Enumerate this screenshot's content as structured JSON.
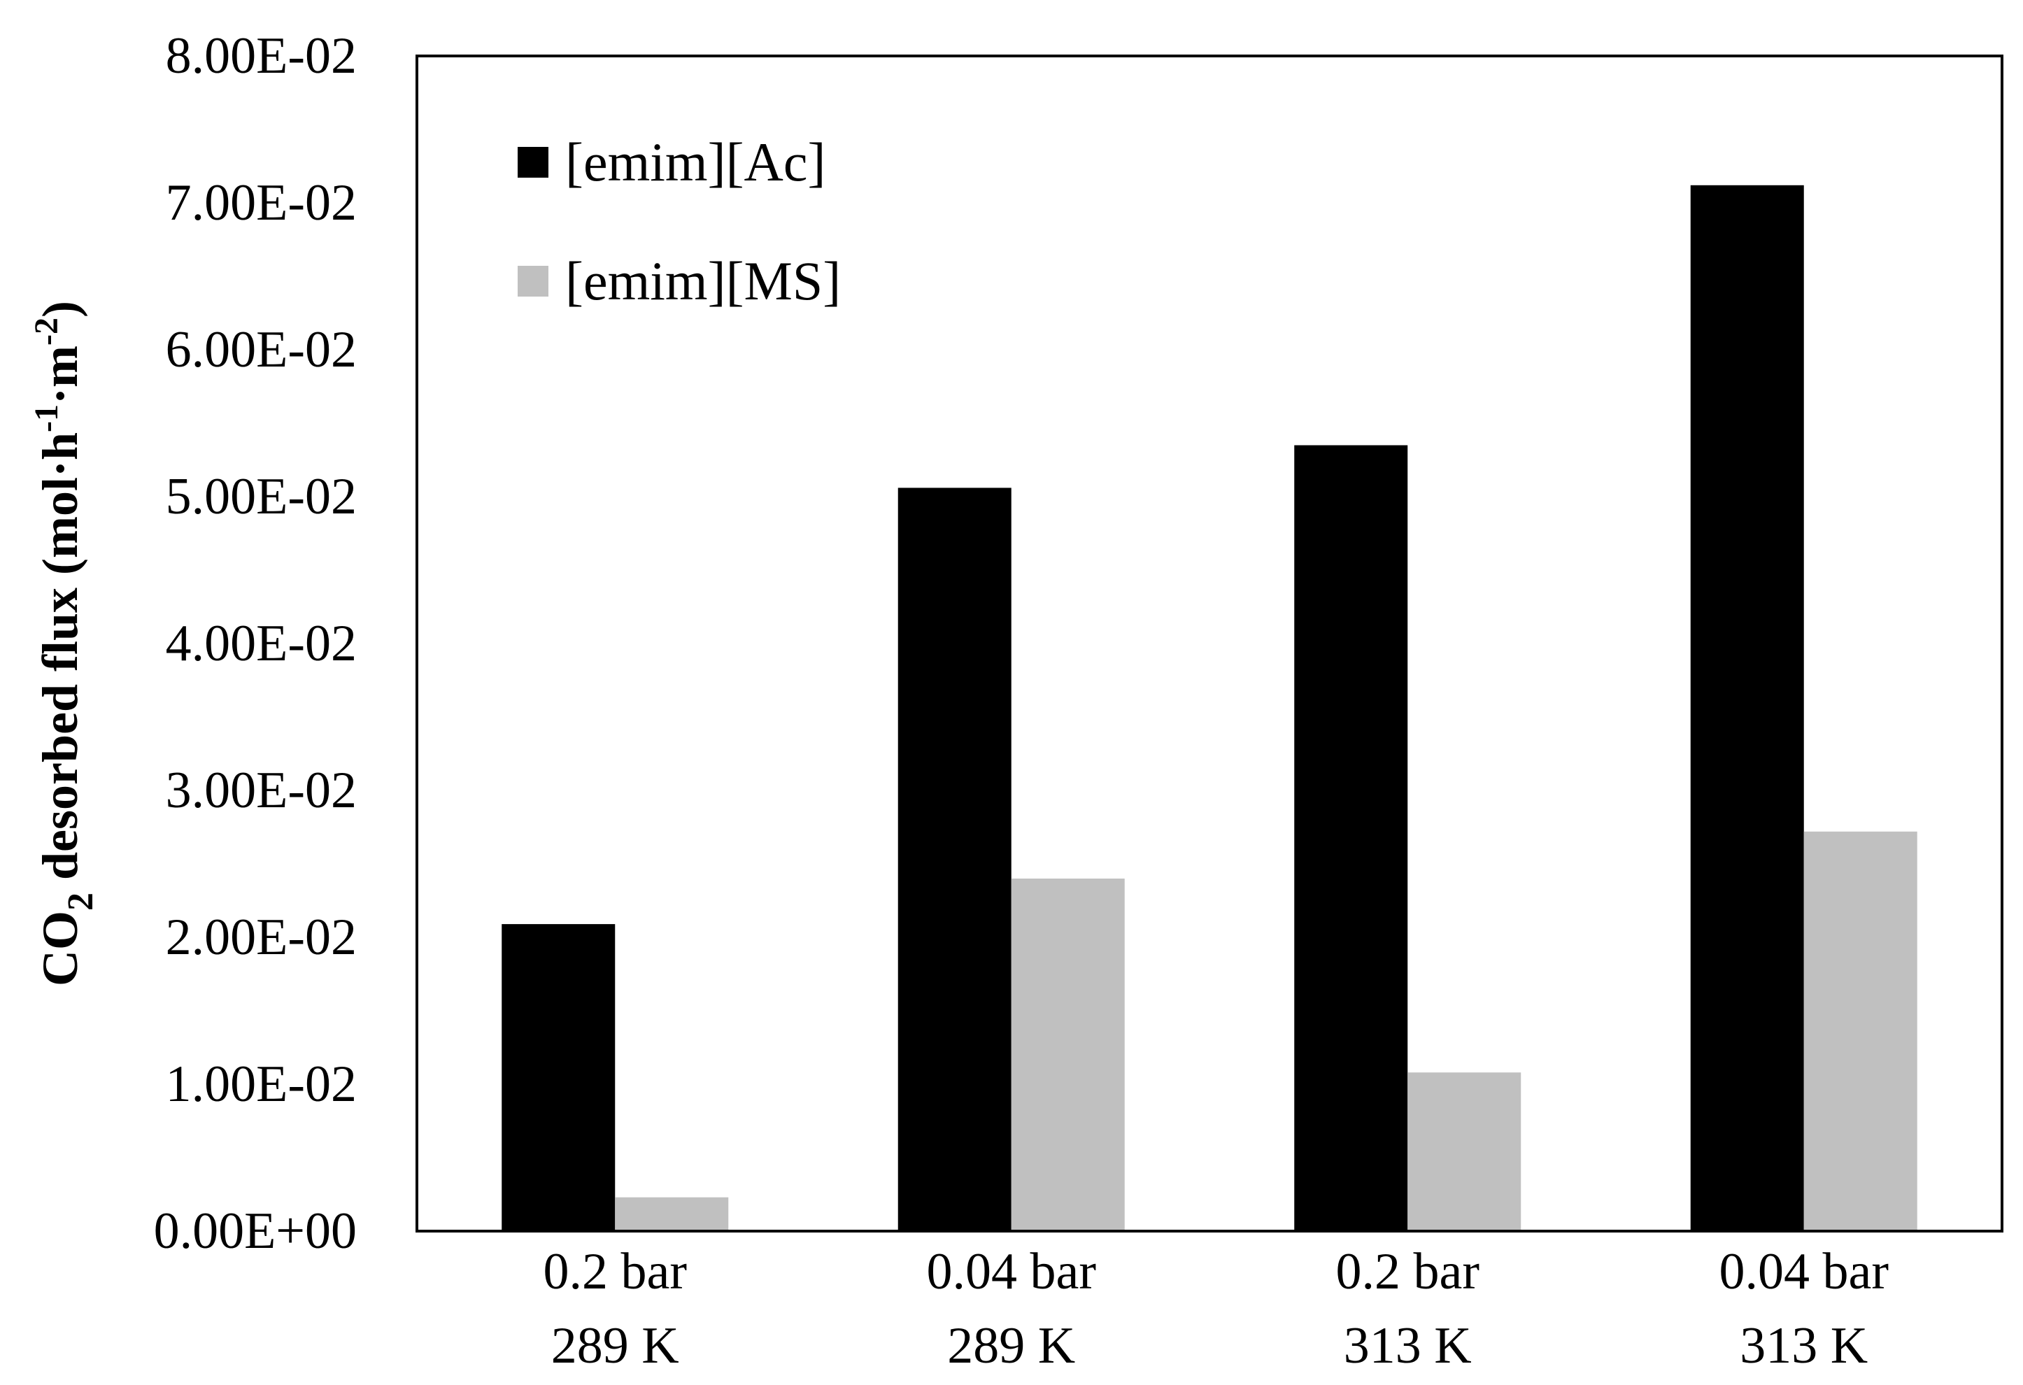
{
  "chart_data": {
    "type": "bar",
    "title": "",
    "xlabel": "",
    "ylabel": {
      "prefix": "CO",
      "sub": "2",
      "main": " desorbed flux (mol·h",
      "sup1": "-1",
      "mid": "·m",
      "sup2": "-2",
      "suffix": ")"
    },
    "categories": [
      {
        "line1": "0.2 bar",
        "line2": "289 K"
      },
      {
        "line1": "0.04 bar",
        "line2": "289 K"
      },
      {
        "line1": "0.2 bar",
        "line2": "313 K"
      },
      {
        "line1": "0.04 bar",
        "line2": "313 K"
      }
    ],
    "series": [
      {
        "name": "[emim][Ac]",
        "color": "#000000",
        "values": [
          0.0209,
          0.0506,
          0.0535,
          0.0712
        ]
      },
      {
        "name": "[emim][MS]",
        "color": "#c0c0c0",
        "values": [
          0.0023,
          0.024,
          0.0108,
          0.0272
        ]
      }
    ],
    "ylim": [
      0,
      0.08
    ],
    "yticks": [
      "0.00E+00",
      "1.00E-02",
      "2.00E-02",
      "3.00E-02",
      "4.00E-02",
      "5.00E-02",
      "6.00E-02",
      "7.00E-02",
      "8.00E-02"
    ],
    "grid": false,
    "legend_position": "top-left"
  }
}
